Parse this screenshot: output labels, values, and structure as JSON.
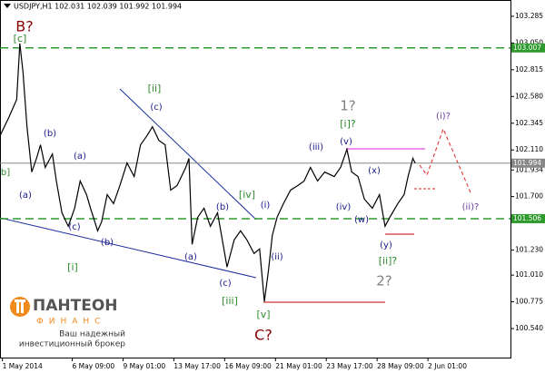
{
  "chart_data": {
    "type": "line",
    "title": "USDJPY,H1  102.031 102.039 101.992 101.994",
    "x": [
      0,
      11,
      21,
      25,
      29,
      34,
      40,
      46,
      51,
      57,
      66,
      71,
      78,
      86,
      94,
      101,
      109,
      114,
      123,
      128,
      135,
      143,
      151,
      160,
      169,
      177,
      185,
      192,
      200,
      208,
      215,
      223,
      234,
      238,
      242,
      249,
      257,
      265,
      274,
      286,
      295,
      303,
      311,
      320,
      327,
      333,
      338,
      343,
      349,
      357,
      366,
      375,
      383,
      391,
      400,
      409,
      421,
      429,
      437,
      443,
      451,
      459,
      469,
      478,
      485,
      491,
      501,
      509,
      514,
      520,
      523
    ],
    "series": [
      {
        "name": "USDJPY",
        "color": "#000000",
        "values": [
          102.234,
          102.394,
          102.553,
          103.046,
          102.791,
          102.314,
          101.916,
          102.036,
          102.155,
          101.956,
          102.075,
          101.837,
          101.558,
          101.439,
          101.598,
          101.837,
          101.717,
          101.598,
          101.399,
          101.479,
          101.717,
          101.638,
          101.797,
          101.996,
          101.876,
          102.155,
          102.234,
          102.314,
          102.195,
          102.155,
          101.757,
          101.797,
          101.956,
          102.036,
          101.28,
          101.518,
          101.598,
          101.439,
          101.558,
          101.081,
          101.32,
          101.399,
          101.32,
          101.2,
          101.24,
          100.778,
          101.041,
          101.359,
          101.518,
          101.638,
          101.757,
          101.797,
          101.837,
          101.956,
          101.837,
          101.916,
          101.876,
          101.956,
          102.115,
          101.916,
          101.876,
          101.677,
          101.598,
          101.717,
          101.439,
          101.518,
          101.638,
          101.717,
          101.876,
          102.036,
          101.994
        ]
      }
    ],
    "xlim": [
      0,
      643
    ],
    "xticks": [
      {
        "value": 3,
        "label": "1 May 2014"
      },
      {
        "value": 91,
        "label": "6 May 09:00"
      },
      {
        "value": 155,
        "label": "9 May 01:00"
      },
      {
        "value": 219,
        "label": "13 May 17:00"
      },
      {
        "value": 283,
        "label": "16 May 09:00"
      },
      {
        "value": 347,
        "label": "21 May 01:00"
      },
      {
        "value": 411,
        "label": "23 May 17:00"
      },
      {
        "value": 475,
        "label": "28 May 09:00"
      },
      {
        "value": 539,
        "label": "2 Jun 01:00"
      }
    ],
    "ylim": [
      100.285,
      103.428
    ],
    "yticks": [
      103.285,
      {
        "value": 103.05,
        "label": "103.050"
      },
      102.815,
      {
        "value": 102.58,
        "label": "102.580"
      },
      102.345,
      {
        "value": 102.11,
        "label": "102.110"
      },
      101.934,
      {
        "value": 101.7,
        "label": "101.700"
      },
      {
        "value": 101.23,
        "label": "101.230"
      },
      {
        "value": 101.01,
        "label": "101.010"
      },
      100.775,
      {
        "value": 100.54,
        "label": "100.540"
      }
    ],
    "levels": [
      {
        "value": 103.007,
        "color": "#2e9a2e"
      },
      {
        "value": 101.506,
        "color": "#2e9a2e"
      }
    ],
    "current_price": {
      "value": 101.994,
      "color": "#888888"
    },
    "annotations": [
      {
        "text": "B?",
        "color": "#8b0000"
      },
      {
        "text": "[c]",
        "color": "#2e8b2e"
      },
      {
        "text": "(b)",
        "color": "#1a1a8c"
      },
      {
        "text": "(a)",
        "color": "#1a1a8c"
      },
      {
        "text": "b]",
        "color": "#2e8b2e"
      },
      {
        "text": "(a)",
        "color": "#1a1a8c"
      },
      {
        "text": "(c)",
        "color": "#1a1a8c"
      },
      {
        "text": "[i]",
        "color": "#2e8b2e"
      },
      {
        "text": "(b)",
        "color": "#1a1a8c"
      },
      {
        "text": "[ii]",
        "color": "#2e8b2e"
      },
      {
        "text": "(c)",
        "color": "#1a1a8c"
      },
      {
        "text": "(a)",
        "color": "#1a1a8c"
      },
      {
        "text": "(b)",
        "color": "#1a1a8c"
      },
      {
        "text": "(c)",
        "color": "#1a1a8c"
      },
      {
        "text": "[iii]",
        "color": "#2e8b2e"
      },
      {
        "text": "[iv]",
        "color": "#2e8b2e"
      },
      {
        "text": "(i)",
        "color": "#1a1a8c"
      },
      {
        "text": "(ii)",
        "color": "#1a1a8c"
      },
      {
        "text": "[v]",
        "color": "#2e8b2e"
      },
      {
        "text": "C?",
        "color": "#8b0000"
      },
      {
        "text": "(iii)",
        "color": "#1a1a8c"
      },
      {
        "text": "(iv)",
        "color": "#1a1a8c"
      },
      {
        "text": "(v)",
        "color": "#1a1a8c"
      },
      {
        "text": "[i]?",
        "color": "#2e8b2e"
      },
      {
        "text": "1?",
        "color": "#808080"
      },
      {
        "text": "(x)",
        "color": "#1a1a8c"
      },
      {
        "text": "(w)",
        "color": "#1a1a8c"
      },
      {
        "text": "(y)",
        "color": "#1a1a8c"
      },
      {
        "text": "[ii]?",
        "color": "#2e8b2e"
      },
      {
        "text": "2?",
        "color": "#808080"
      },
      {
        "text": "(i)?",
        "color": "#6a3fa0"
      },
      {
        "text": "(ii)?",
        "color": "#6a3fa0"
      }
    ],
    "logo": {
      "name_top": "ПАНТЕОН",
      "name_bottom": "ФИНАНС",
      "slogan_1": "Ваш надежный",
      "slogan_2": "инвестиционный брокер"
    }
  }
}
